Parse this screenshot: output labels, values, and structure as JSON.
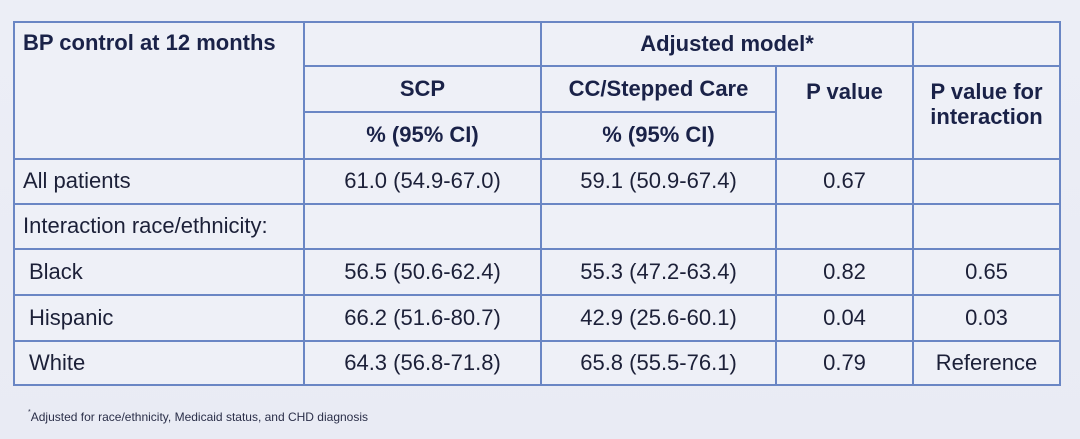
{
  "table": {
    "header": {
      "row_label": "BP control at 12 months",
      "group_label": "Adjusted model*",
      "col_scp": "SCP",
      "col_cc": "CC/Stepped Care",
      "col_p": "P value",
      "col_p_interaction": "P value for interaction",
      "unit_scp": "% (95% CI)",
      "unit_cc": "% (95% CI)"
    },
    "rows": [
      {
        "label": "All patients",
        "scp": "61.0 (54.9-67.0)",
        "cc": "59.1 (50.9-67.4)",
        "p": "0.67",
        "p_interaction": ""
      },
      {
        "label": "Interaction race/ethnicity:",
        "scp": "",
        "cc": "",
        "p": "",
        "p_interaction": ""
      },
      {
        "label": "Black",
        "scp": "56.5 (50.6-62.4)",
        "cc": "55.3 (47.2-63.4)",
        "p": "0.82",
        "p_interaction": "0.65"
      },
      {
        "label": "Hispanic",
        "scp": "66.2 (51.6-80.7)",
        "cc": "42.9 (25.6-60.1)",
        "p": "0.04",
        "p_interaction": "0.03"
      },
      {
        "label": "White",
        "scp": "64.3 (56.8-71.8)",
        "cc": "65.8 (55.5-76.1)",
        "p": "0.79",
        "p_interaction": "Reference"
      }
    ]
  },
  "footnote": {
    "marker": "*",
    "text": "Adjusted for race/ethnicity, Medicaid status, and CHD diagnosis"
  }
}
